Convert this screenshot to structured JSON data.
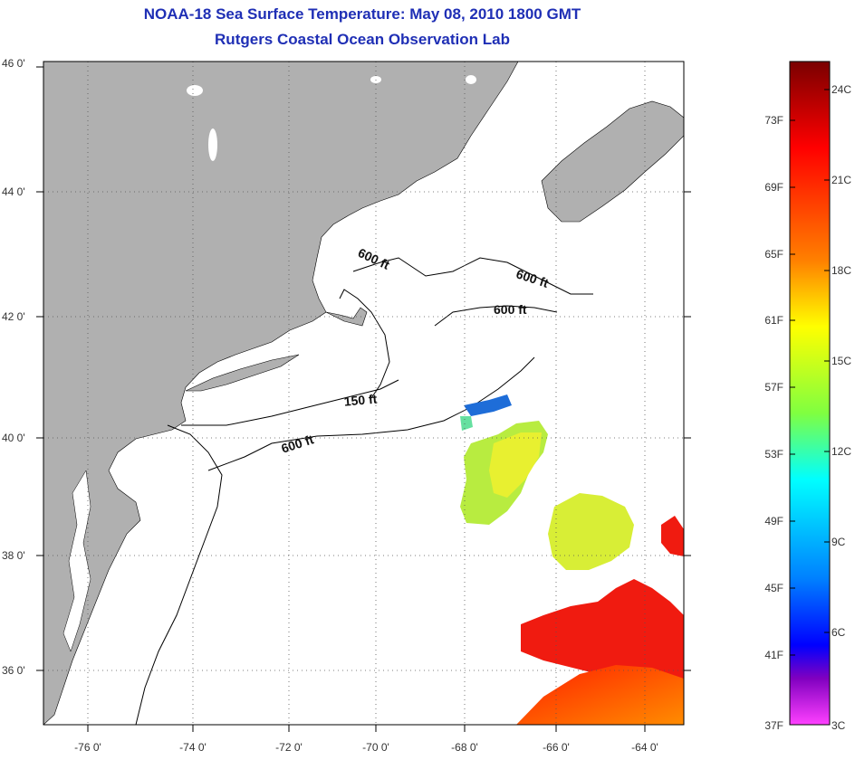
{
  "header": {
    "title": "NOAA-18 Sea Surface Temperature:  May 08, 2010 1800 GMT",
    "subtitle": "Rutgers Coastal Ocean Observation Lab"
  },
  "map": {
    "lat_labels": [
      "46 0'",
      "44 0'",
      "42 0'",
      "40 0'",
      "38 0'",
      "36 0'"
    ],
    "lon_labels": [
      "-76 0'",
      "-74 0'",
      "-72 0'",
      "-70 0'",
      "-68 0'",
      "-66 0'",
      "-64 0'"
    ],
    "depth_labels": [
      "600 ft",
      "600 ft",
      "600 ft",
      "150 ft",
      "600 ft"
    ],
    "colors": {
      "land": "#b0b0b0",
      "water": "#ffffff",
      "grid": "#555555"
    }
  },
  "colorbar": {
    "fahrenheit": [
      "73F",
      "69F",
      "65F",
      "61F",
      "57F",
      "53F",
      "49F",
      "45F",
      "41F",
      "37F"
    ],
    "celsius": [
      "24C",
      "21C",
      "18C",
      "15C",
      "12C",
      "9C",
      "6C",
      "3C"
    ],
    "gradient": [
      "#7a0000",
      "#ff0000",
      "#ff8000",
      "#ffff00",
      "#80ff40",
      "#00ffff",
      "#0080ff",
      "#0000ff",
      "#8000ff",
      "#ff40ff"
    ]
  }
}
